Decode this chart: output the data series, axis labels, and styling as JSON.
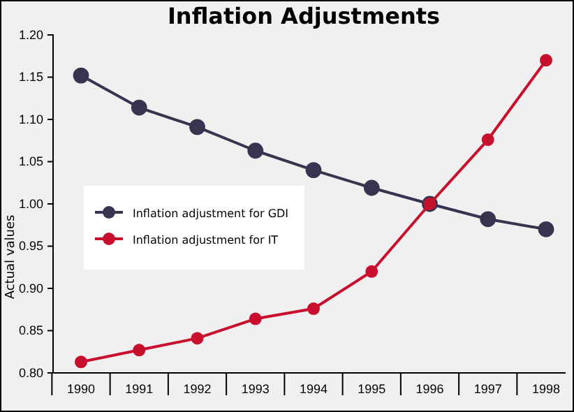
{
  "chart_data": {
    "type": "line",
    "title": "Inflation Adjustments",
    "ylabel": "Actual values",
    "categories": [
      "1990",
      "1991",
      "1992",
      "1993",
      "1994",
      "1995",
      "1996",
      "1997",
      "1998"
    ],
    "series": [
      {
        "name": "Inflation adjustment for GDI",
        "color": "#38334f",
        "values": [
          1.152,
          1.114,
          1.091,
          1.063,
          1.04,
          1.019,
          1.0,
          0.982,
          0.97
        ]
      },
      {
        "name": "Inflation adjustment for IT",
        "color": "#c8102e",
        "values": [
          0.813,
          0.827,
          0.841,
          0.864,
          0.876,
          0.92,
          1.0,
          1.076,
          1.17
        ]
      }
    ],
    "ylim": [
      0.8,
      1.2
    ],
    "yticks": [
      {
        "value": 0.8,
        "label": "0.80"
      },
      {
        "value": 0.85,
        "label": "0.85"
      },
      {
        "value": 0.9,
        "label": "0.90"
      },
      {
        "value": 0.95,
        "label": "0.95"
      },
      {
        "value": 1.0,
        "label": "1.00"
      },
      {
        "value": 1.05,
        "label": "1.05"
      },
      {
        "value": 1.1,
        "label": "1.10"
      },
      {
        "value": 1.15,
        "label": "1.15"
      },
      {
        "value": 1.2,
        "label": "1.20"
      }
    ],
    "grid": false,
    "legend": "left",
    "marker": "circle",
    "line_style": "solid"
  }
}
